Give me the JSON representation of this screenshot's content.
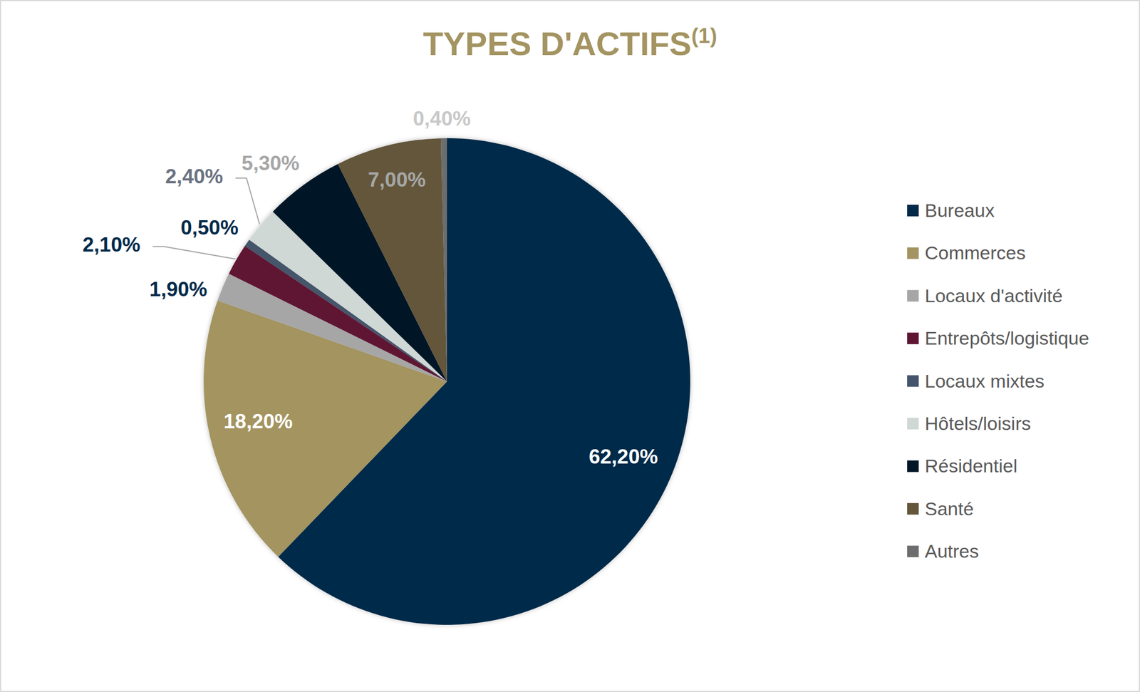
{
  "chart_data": {
    "type": "pie",
    "title": "TYPES D'ACTIFS",
    "annotations": [
      "(1)"
    ],
    "categories": [
      "Bureaux",
      "Commerces",
      "Locaux d'activité",
      "Entrepôts/logistique",
      "Locaux mixtes",
      "Hôtels/loisirs",
      "Résidentiel",
      "Santé",
      "Autres"
    ],
    "values": [
      62.2,
      18.2,
      1.9,
      2.1,
      0.5,
      2.4,
      5.3,
      7.0,
      0.4
    ],
    "value_labels": [
      "62,20%",
      "18,20%",
      "1,90%",
      "2,10%",
      "0,50%",
      "2,40%",
      "5,30%",
      "7,00%",
      "0,40%"
    ],
    "colors": [
      "#012a4a",
      "#a39461",
      "#a6a6a6",
      "#5e1532",
      "#44546a",
      "#cfd8d5",
      "#021628",
      "#63563a",
      "#6d6d6d"
    ],
    "data_labels": true,
    "legend": "right"
  }
}
